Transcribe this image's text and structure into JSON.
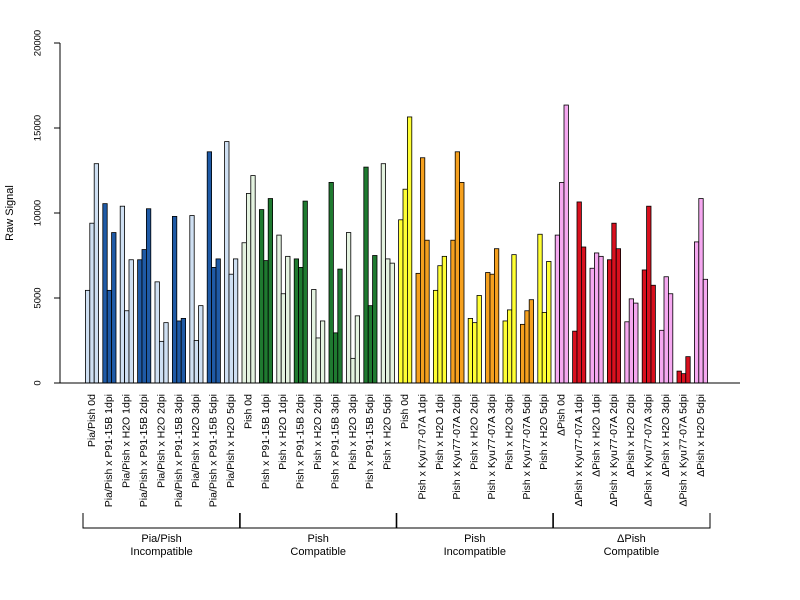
{
  "chart_data": {
    "type": "bar",
    "ylabel": "Raw Signal",
    "xlabel": "",
    "ylim": [
      0,
      20000
    ],
    "yticks": [
      0,
      5000,
      10000,
      15000,
      20000
    ],
    "grid": false,
    "legend": "none",
    "colors": {
      "light_blue": "#cfe0f3",
      "dark_blue": "#1f5aa6",
      "light_green": "#e4f3e0",
      "dark_green": "#1f7a30",
      "yellow": "#ffff33",
      "orange": "#f5a01e",
      "pink": "#f5a8f0",
      "red": "#d8101e"
    },
    "categories": [
      {
        "label": "Pia/Pish 0d",
        "color": "light_blue",
        "values": [
          5450,
          9400,
          12900
        ]
      },
      {
        "label": "Pia/Pish x P91-15B 1dpi",
        "color": "dark_blue",
        "values": [
          10550,
          5450,
          8850
        ]
      },
      {
        "label": "Pia/Pish x H2O 1dpi",
        "color": "light_blue",
        "values": [
          10400,
          4250,
          7250
        ]
      },
      {
        "label": "Pia/Pish x P91-15B 2dpi",
        "color": "dark_blue",
        "values": [
          7250,
          7850,
          10250
        ]
      },
      {
        "label": "Pia/Pish x H2O 2dpi",
        "color": "light_blue",
        "values": [
          5950,
          2450,
          3550
        ]
      },
      {
        "label": "Pia/Pish x P91-15B 3dpi",
        "color": "dark_blue",
        "values": [
          9800,
          3650,
          3800
        ]
      },
      {
        "label": "Pia/Pish x H2O 3dpi",
        "color": "light_blue",
        "values": [
          9850,
          2500,
          4550
        ]
      },
      {
        "label": "Pia/Pish x P91-15B 5dpi",
        "color": "dark_blue",
        "values": [
          13600,
          6800,
          7300
        ]
      },
      {
        "label": "Pia/Pish x H2O 5dpi",
        "color": "light_blue",
        "values": [
          14200,
          6400,
          7300
        ]
      },
      {
        "label": "Pish 0d",
        "color": "light_green",
        "values": [
          8250,
          11150,
          12200
        ]
      },
      {
        "label": "Pish x P91-15B 1dpi",
        "color": "dark_green",
        "values": [
          10200,
          7200,
          10850
        ]
      },
      {
        "label": "Pish x H2O 1dpi",
        "color": "light_green",
        "values": [
          8700,
          5250,
          7450
        ]
      },
      {
        "label": "Pish x P91-15B 2dpi",
        "color": "dark_green",
        "values": [
          7300,
          6800,
          10700
        ]
      },
      {
        "label": "Pish x H2O 2dpi",
        "color": "light_green",
        "values": [
          5500,
          2650,
          3650
        ]
      },
      {
        "label": "Pish x P91-15B 3dpi",
        "color": "dark_green",
        "values": [
          11800,
          2950,
          6700
        ]
      },
      {
        "label": "Pish x H2O 3dpi",
        "color": "light_green",
        "values": [
          8850,
          1450,
          3950
        ]
      },
      {
        "label": "Pish x P91-15B 5dpi",
        "color": "dark_green",
        "values": [
          12700,
          4550,
          7500
        ]
      },
      {
        "label": "Pish x H2O 5dpi",
        "color": "light_green",
        "values": [
          12900,
          7300,
          7050
        ]
      },
      {
        "label": "Pish 0d",
        "color": "yellow",
        "values": [
          9600,
          11400,
          15650
        ]
      },
      {
        "label": "Pish x Kyu77-07A 1dpi",
        "color": "orange",
        "values": [
          6450,
          13250,
          8400
        ]
      },
      {
        "label": "Pish x H2O 1dpi",
        "color": "yellow",
        "values": [
          5450,
          6900,
          7450
        ]
      },
      {
        "label": "Pish x Kyu77-07A 2dpi",
        "color": "orange",
        "values": [
          8400,
          13600,
          11800
        ]
      },
      {
        "label": "Pish x H2O 2dpi",
        "color": "yellow",
        "values": [
          3800,
          3550,
          5150
        ]
      },
      {
        "label": "Pish x Kyu77-07A 3dpi",
        "color": "orange",
        "values": [
          6500,
          6400,
          7900
        ]
      },
      {
        "label": "Pish x H2O 3dpi",
        "color": "yellow",
        "values": [
          3650,
          4300,
          7550
        ]
      },
      {
        "label": "Pish x Kyu77-07A 5dpi",
        "color": "orange",
        "values": [
          3450,
          4250,
          4900
        ]
      },
      {
        "label": "Pish x H2O 5dpi",
        "color": "yellow",
        "values": [
          8750,
          4150,
          7150
        ]
      },
      {
        "label": "ΔPish 0d",
        "color": "pink",
        "values": [
          8700,
          11800,
          16350
        ]
      },
      {
        "label": "ΔPish x Kyu77-07A 1dpi",
        "color": "red",
        "values": [
          3050,
          10650,
          8000
        ]
      },
      {
        "label": "ΔPish x H2O 1dpi",
        "color": "pink",
        "values": [
          6750,
          7650,
          7450
        ]
      },
      {
        "label": "ΔPish x Kyu77-07A 2dpi",
        "color": "red",
        "values": [
          7250,
          9400,
          7900
        ]
      },
      {
        "label": "ΔPish x H2O 2dpi",
        "color": "pink",
        "values": [
          3600,
          4950,
          4700
        ]
      },
      {
        "label": "ΔPish x Kyu77-07A 3dpi",
        "color": "red",
        "values": [
          6650,
          10400,
          5750
        ]
      },
      {
        "label": "ΔPish x H2O 3dpi",
        "color": "pink",
        "values": [
          3100,
          6250,
          5250
        ]
      },
      {
        "label": "ΔPish x Kyu77-07A 5dpi",
        "color": "red",
        "values": [
          700,
          550,
          1550
        ]
      },
      {
        "label": "ΔPish x H2O 5dpi",
        "color": "pink",
        "values": [
          8300,
          10850,
          6100
        ]
      }
    ],
    "groups": [
      {
        "line1": "Pia/Pish",
        "line2": "Incompatible",
        "first": 0,
        "last": 8
      },
      {
        "line1": "Pish",
        "line2": "Compatible",
        "first": 9,
        "last": 17
      },
      {
        "line1": "Pish",
        "line2": "Incompatible",
        "first": 18,
        "last": 26
      },
      {
        "line1": "ΔPish",
        "line2": "Compatible",
        "first": 27,
        "last": 35
      }
    ]
  }
}
